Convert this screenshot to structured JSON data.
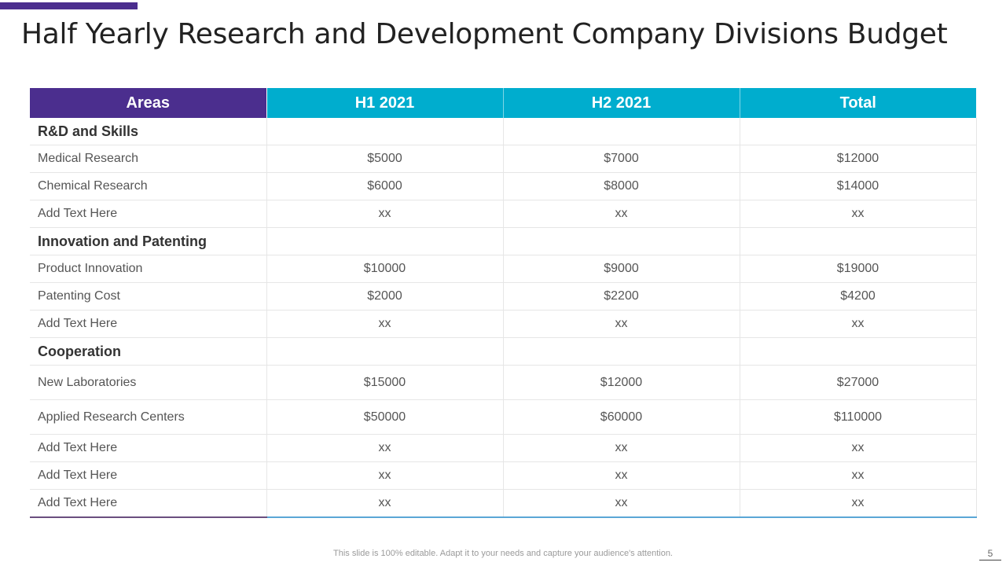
{
  "slide": {
    "title": "Half Yearly Research and Development Company Divisions Budget",
    "footer_note": "This slide is 100% editable. Adapt it to your needs and capture your audience's attention.",
    "page_number": "5",
    "accent_color": "#4b2e8e",
    "header_color": "#00adce"
  },
  "table": {
    "headers": [
      "Areas",
      "H1 2021",
      "H2 2021",
      "Total"
    ],
    "rows": [
      [
        "R&D and Skills",
        "",
        "",
        ""
      ],
      [
        "Medical Research",
        "$5000",
        "$7000",
        "$12000"
      ],
      [
        "Chemical Research",
        "$6000",
        "$8000",
        "$14000"
      ],
      [
        "Add Text Here",
        "xx",
        "xx",
        "xx"
      ],
      [
        "Innovation and Patenting",
        "",
        "",
        ""
      ],
      [
        "Product Innovation",
        "$10000",
        "$9000",
        "$19000"
      ],
      [
        "Patenting Cost",
        "$2000",
        "$2200",
        "$4200"
      ],
      [
        "Add Text Here",
        "xx",
        "xx",
        "xx"
      ],
      [
        "Cooperation",
        "",
        "",
        ""
      ],
      [
        "New Laboratories",
        "$15000",
        "$12000",
        "$27000"
      ],
      [
        "Applied Research Centers",
        "$50000",
        "$60000",
        "$110000"
      ],
      [
        "Add Text Here",
        "xx",
        "xx",
        "xx"
      ],
      [
        "Add Text Here",
        "xx",
        "xx",
        "xx"
      ],
      [
        "Add Text Here",
        "xx",
        "xx",
        "xx"
      ]
    ]
  }
}
